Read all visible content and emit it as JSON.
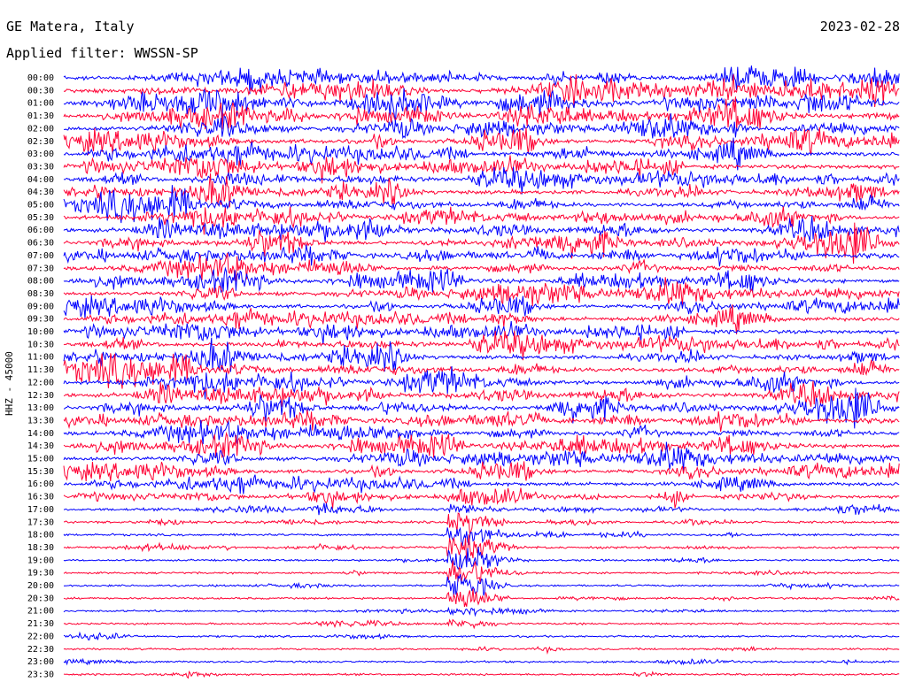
{
  "header": {
    "station": "GE Matera, Italy",
    "date": "2023-02-28",
    "filter": "Applied filter: WWSSN-SP"
  },
  "chart_data": {
    "type": "line",
    "ylabel": "HHZ - 45000",
    "series_colors": [
      "#0000ff",
      "#ff0033"
    ],
    "rows": [
      "00:00",
      "00:30",
      "01:00",
      "01:30",
      "02:00",
      "02:30",
      "03:00",
      "03:30",
      "04:00",
      "04:30",
      "05:00",
      "05:30",
      "06:00",
      "06:30",
      "07:00",
      "07:30",
      "08:00",
      "08:30",
      "09:00",
      "09:30",
      "10:00",
      "10:30",
      "11:00",
      "11:30",
      "12:00",
      "12:30",
      "13:00",
      "13:30",
      "14:00",
      "14:30",
      "15:00",
      "15:30",
      "16:00",
      "16:30",
      "17:00",
      "17:30",
      "18:00",
      "18:30",
      "19:00",
      "19:30",
      "20:00",
      "20:30",
      "21:00",
      "21:30",
      "22:00",
      "22:30",
      "23:00",
      "23:30"
    ],
    "row_activity": [
      8,
      8,
      8,
      8,
      8,
      8,
      8,
      8,
      7,
      7,
      7,
      7,
      7,
      7,
      7,
      7,
      7,
      7,
      7,
      7,
      7,
      7,
      7,
      7,
      7,
      7,
      7,
      7,
      7,
      7,
      7,
      7,
      6,
      5,
      3,
      2,
      2,
      2,
      1,
      1,
      1,
      1,
      1,
      1,
      1,
      1,
      1,
      1
    ],
    "grid": false
  }
}
